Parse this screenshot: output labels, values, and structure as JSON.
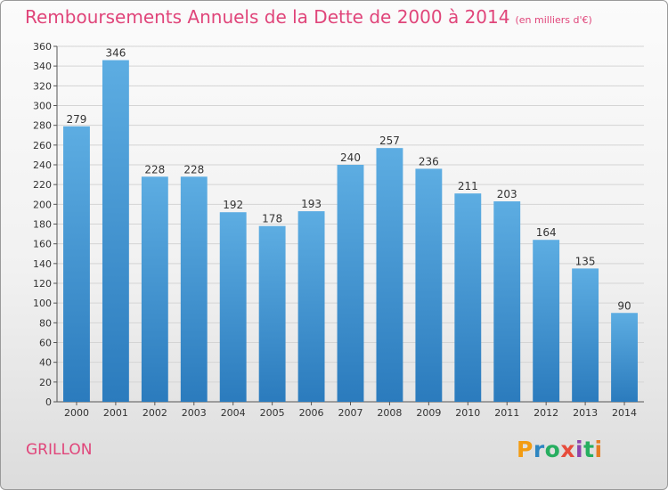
{
  "title": "Remboursements Annuels de la Dette de 2000 à 2014",
  "unit": "(en milliers d'€)",
  "commune": "GRILLON",
  "logo": {
    "letters": [
      "P",
      "r",
      "o",
      "x",
      "i",
      "t",
      "i"
    ],
    "colors": [
      "#f39c12",
      "#2e86c1",
      "#27ae60",
      "#e74c3c",
      "#8e44ad",
      "#27ae60",
      "#e67e22"
    ]
  },
  "colors": {
    "title": "#e0457a",
    "bar_light": "#5dade2",
    "bar_dark": "#2b7bbd"
  },
  "chart_data": {
    "type": "bar",
    "categories": [
      "2000",
      "2001",
      "2002",
      "2003",
      "2004",
      "2005",
      "2006",
      "2007",
      "2008",
      "2009",
      "2010",
      "2011",
      "2012",
      "2013",
      "2014"
    ],
    "values": [
      279,
      346,
      228,
      228,
      192,
      178,
      193,
      240,
      257,
      236,
      211,
      203,
      164,
      135,
      90
    ],
    "title": "Remboursements Annuels de la Dette de 2000 à 2014",
    "xlabel": "",
    "ylabel": "",
    "ylim": [
      0,
      360
    ],
    "yticks": [
      0,
      20,
      40,
      60,
      80,
      100,
      120,
      140,
      160,
      180,
      200,
      220,
      240,
      260,
      280,
      300,
      320,
      340,
      360
    ],
    "grid": "horizontal",
    "legend": "none"
  }
}
